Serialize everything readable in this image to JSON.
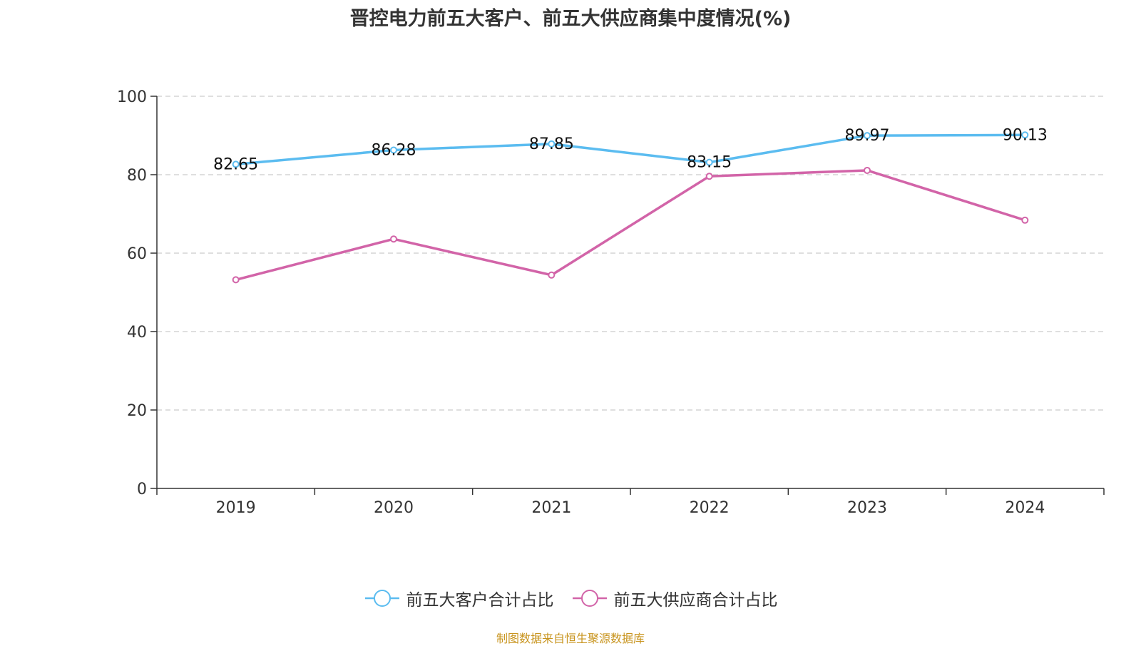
{
  "chart_data": {
    "type": "line",
    "title": "晋控电力前五大客户、前五大供应商集中度情况(%)",
    "categories": [
      "2019",
      "2020",
      "2021",
      "2022",
      "2023",
      "2024"
    ],
    "ylim": [
      0,
      100
    ],
    "yticks": [
      0,
      20,
      40,
      60,
      80,
      100
    ],
    "grid": true,
    "legend_position": "bottom",
    "series": [
      {
        "name": "前五大客户合计占比",
        "color": "#5bbcf0",
        "values": [
          82.65,
          86.28,
          87.85,
          83.15,
          89.97,
          90.13
        ],
        "labels": [
          "82.65",
          "86.28",
          "87.85",
          "83.15",
          "89.97",
          "90.13"
        ]
      },
      {
        "name": "前五大供应商合计占比",
        "color": "#d264a8",
        "values": [
          53.2,
          63.6,
          54.4,
          79.6,
          81.1,
          68.4
        ]
      }
    ]
  },
  "source": "制图数据来自恒生聚源数据库"
}
